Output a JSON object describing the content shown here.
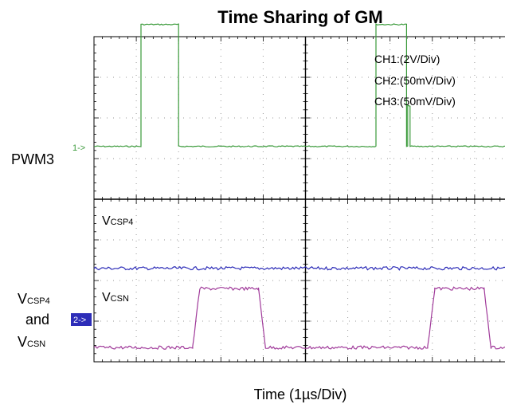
{
  "chart_data": {
    "type": "line",
    "title": "Time Sharing of GM",
    "xlabel": "Time (1µs/Div)",
    "x_divisions": 10,
    "y_divisions": 8,
    "grid": true,
    "channel_settings": [
      "CH1:(2V/Div)",
      "CH2:(50mV/Div)",
      "CH3:(50mV/Div)"
    ],
    "side_labels": {
      "pwm": "PWM3",
      "vcs_group": [
        {
          "main": "V",
          "sub": "CSP4"
        },
        {
          "main": "and",
          "sub": ""
        },
        {
          "main": "V",
          "sub": "CSN"
        }
      ]
    },
    "channel_markers": {
      "ch1": "1->",
      "ch2": "2->"
    },
    "series": [
      {
        "name": "PWM3",
        "label": {
          "main": "",
          "sub": ""
        },
        "color": "#3a9a3a",
        "ground_div": 5.3,
        "points": [
          [
            0,
            0
          ],
          [
            2.0,
            0
          ],
          [
            2.0,
            3.0
          ],
          [
            3.6,
            3.0
          ],
          [
            3.6,
            0
          ],
          [
            12.0,
            0
          ],
          [
            12.0,
            3.0
          ],
          [
            13.3,
            3.0
          ],
          [
            13.3,
            0
          ],
          [
            13.35,
            0
          ],
          [
            13.35,
            1.0
          ],
          [
            13.45,
            1.0
          ],
          [
            13.45,
            0
          ],
          [
            18.0,
            0
          ]
        ],
        "unit": "V"
      },
      {
        "name": "VCSP4",
        "label": {
          "main": "V",
          "sub": "CSP4"
        },
        "color": "#2d2db8",
        "ground_div": 2.3,
        "points": [
          [
            0,
            0
          ],
          [
            18.0,
            0
          ]
        ],
        "unit": "mV"
      },
      {
        "name": "VCSN",
        "label": {
          "main": "V",
          "sub": "CSN"
        },
        "color": "#a03a9a",
        "ground_div": 0.35,
        "points": [
          [
            0,
            0
          ],
          [
            4.2,
            0
          ],
          [
            4.5,
            2.9
          ],
          [
            7.0,
            2.9
          ],
          [
            7.3,
            0
          ],
          [
            14.2,
            0
          ],
          [
            14.5,
            2.9
          ],
          [
            16.6,
            2.9
          ],
          [
            16.9,
            0
          ],
          [
            18.0,
            0
          ]
        ],
        "unit": "mV"
      }
    ]
  }
}
